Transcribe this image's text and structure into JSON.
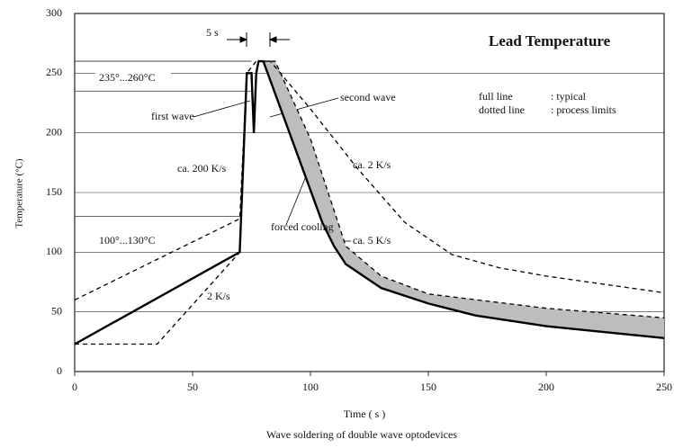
{
  "chart_data": {
    "type": "line",
    "title": "Lead Temperature",
    "xlabel": "Time ( s )",
    "ylabel": "Temperature (°C)",
    "caption": "Wave soldering of double wave optodevices",
    "legend": [
      [
        "full line",
        ": typical"
      ],
      [
        "dotted line",
        ": process limits"
      ]
    ],
    "annotations": [
      "235°...260°C",
      "first wave",
      "second wave",
      "ca. 200 K/s",
      "ca. 2 K/s",
      "forced cooling",
      "ca. 5 K/s",
      "100°...130°C",
      "2 K/s",
      "5 s"
    ],
    "xlim": [
      0,
      250
    ],
    "ylim": [
      0,
      300
    ],
    "xticks": [
      0,
      50,
      100,
      150,
      200,
      250
    ],
    "yticks": [
      0,
      50,
      100,
      150,
      200,
      250,
      300
    ],
    "hlines": [
      260,
      235,
      130
    ],
    "grid": true,
    "series": [
      {
        "color": "#000000",
        "dashed": false,
        "x": [
          0,
          70,
          73,
          75,
          76,
          77,
          78,
          80,
          105,
          110,
          115,
          130,
          150,
          170,
          200,
          250
        ],
        "values": [
          23,
          100,
          250,
          250,
          200,
          250,
          260,
          260,
          125,
          105,
          90,
          70,
          57,
          47,
          38,
          28
        ]
      },
      {
        "color": "#000000",
        "dashed": true,
        "x": [
          0,
          70,
          73,
          77,
          83,
          100,
          120,
          140,
          160,
          180,
          200,
          250
        ],
        "values": [
          60,
          128,
          250,
          260,
          260,
          220,
          170,
          125,
          98,
          87,
          80,
          66
        ]
      },
      {
        "color": "#000000",
        "dashed": true,
        "x": [
          0,
          35,
          70
        ],
        "values": [
          23,
          23,
          100
        ]
      },
      {
        "color": "#000000",
        "dashed": true,
        "x": [
          80,
          85,
          100,
          115,
          130,
          150,
          200,
          250
        ],
        "values": [
          260,
          260,
          195,
          105,
          80,
          65,
          53,
          45
        ]
      }
    ]
  }
}
